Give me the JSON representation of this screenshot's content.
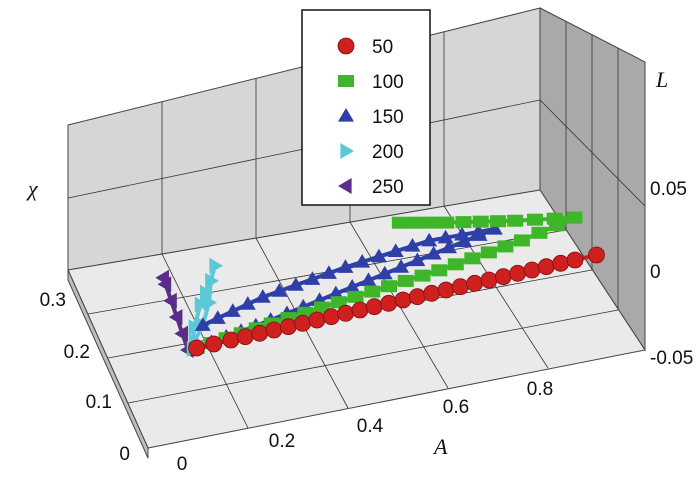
{
  "chart_data": {
    "type": "line",
    "subtype": "3d-scatter-line",
    "axes": {
      "A": {
        "label": "A",
        "range": [
          0,
          1
        ],
        "ticks": [
          "0",
          "0.2",
          "0.4",
          "0.6",
          "0.8"
        ]
      },
      "chi": {
        "label": "χ",
        "range": [
          0,
          0.3
        ],
        "ticks": [
          "0",
          "0.1",
          "0.2",
          "0.3"
        ]
      },
      "L": {
        "label": "L",
        "range": [
          -0.05,
          0.05
        ],
        "ticks": [
          "-0.05",
          "0",
          "0.05"
        ]
      }
    },
    "grid": true,
    "legend_position": "top",
    "series": [
      {
        "name": "50",
        "color": "#d01f1f",
        "marker": "circle",
        "points": [
          [
            0.02,
            0.0,
            -0.02
          ],
          [
            0.1,
            0.0,
            -0.02
          ],
          [
            0.2,
            0.0,
            -0.02
          ],
          [
            0.3,
            0.0,
            -0.02
          ],
          [
            0.4,
            0.0,
            -0.02
          ],
          [
            0.5,
            0.0,
            -0.02
          ],
          [
            0.6,
            0.0,
            -0.02
          ],
          [
            0.7,
            0.0,
            -0.02
          ],
          [
            0.8,
            0.0,
            -0.02
          ],
          [
            0.9,
            0.0,
            -0.02
          ],
          [
            0.95,
            0.0,
            -0.02
          ]
        ]
      },
      {
        "name": "100",
        "color": "#3fb52a",
        "marker": "square",
        "points": [
          [
            0.02,
            0.0,
            -0.02
          ],
          [
            0.2,
            0.02,
            -0.02
          ],
          [
            0.4,
            0.04,
            -0.02
          ],
          [
            0.6,
            0.06,
            -0.02
          ],
          [
            0.8,
            0.09,
            -0.02
          ],
          [
            0.93,
            0.12,
            -0.02
          ],
          [
            0.8,
            0.15,
            -0.02
          ],
          [
            0.65,
            0.19,
            -0.02
          ],
          [
            0.55,
            0.22,
            -0.02
          ]
        ]
      },
      {
        "name": "150",
        "color": "#2f3fa8",
        "marker": "triangle-up",
        "points": [
          [
            0.02,
            0.0,
            -0.02
          ],
          [
            0.2,
            0.03,
            -0.02
          ],
          [
            0.4,
            0.07,
            -0.02
          ],
          [
            0.6,
            0.11,
            -0.02
          ],
          [
            0.75,
            0.14,
            -0.02
          ],
          [
            0.6,
            0.15,
            -0.02
          ],
          [
            0.4,
            0.13,
            -0.02
          ],
          [
            0.2,
            0.1,
            -0.02
          ],
          [
            0.05,
            0.06,
            -0.02
          ]
        ]
      },
      {
        "name": "200",
        "color": "#5cc8d6",
        "marker": "triangle-right",
        "points": [
          [
            0.01,
            0.0,
            -0.02
          ],
          [
            0.03,
            0.06,
            -0.02
          ],
          [
            0.06,
            0.12,
            -0.02
          ],
          [
            0.1,
            0.18,
            -0.02
          ],
          [
            0.12,
            0.22,
            -0.02
          ],
          [
            0.1,
            0.18,
            -0.02
          ],
          [
            0.08,
            0.12,
            -0.02
          ],
          [
            0.05,
            0.06,
            -0.02
          ],
          [
            0.02,
            0.02,
            -0.02
          ]
        ]
      },
      {
        "name": "250",
        "color": "#5a2d8a",
        "marker": "triangle-left",
        "points": [
          [
            0.0,
            0.0,
            -0.02
          ],
          [
            0.0,
            0.05,
            -0.02
          ],
          [
            0.0,
            0.1,
            -0.02
          ],
          [
            0.0,
            0.15,
            -0.02
          ],
          [
            0.0,
            0.2,
            -0.02
          ],
          [
            0.0,
            0.22,
            -0.02
          ]
        ]
      }
    ]
  }
}
